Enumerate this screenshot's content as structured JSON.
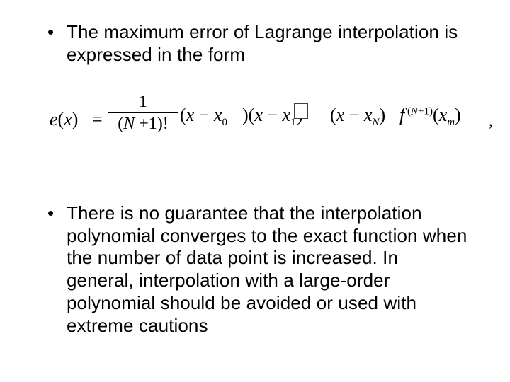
{
  "bullets": {
    "b1": "The maximum error of Lagrange interpolation is expressed in the form",
    "b2": "There is no guarantee that the interpolation polynomial converges to the exact function when the number of data point is increased. In general, interpolation with a large-order polynomial should be avoided or used with extreme cautions"
  },
  "formula": {
    "e": "e",
    "x": "x",
    "eq": "=",
    "one": "1",
    "N": "N",
    "plus1": "+1",
    "fact": "!",
    "minus": "−",
    "sub0": "0",
    "sub1": "1",
    "subN": "N",
    "subm": "m",
    "f": "f",
    "comma": ","
  }
}
